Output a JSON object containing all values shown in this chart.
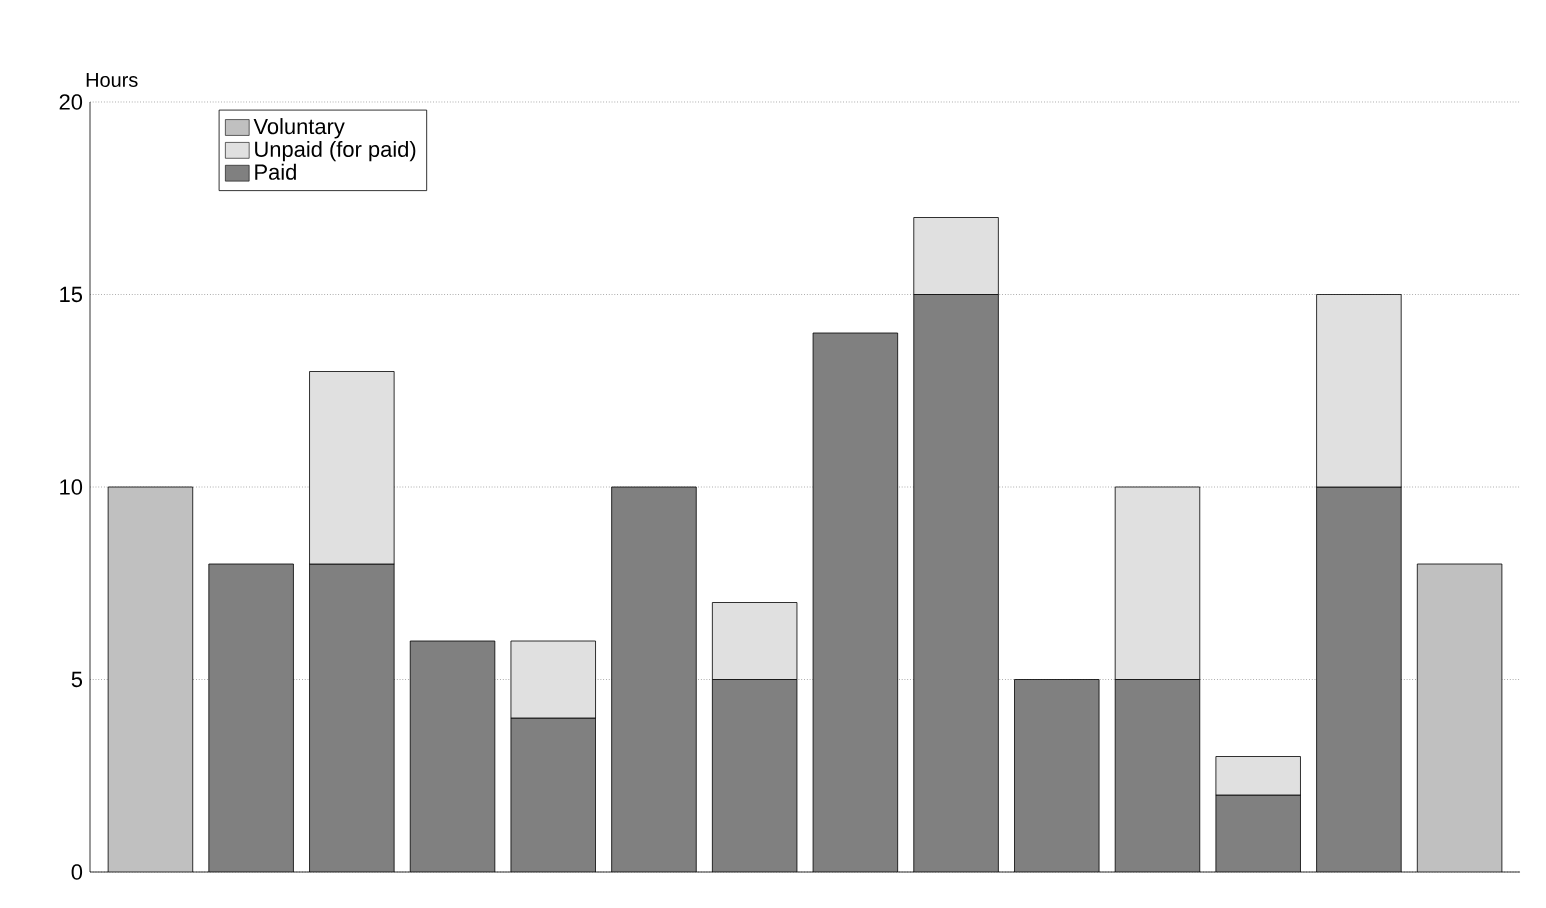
{
  "chart_data": {
    "type": "bar",
    "stacked": true,
    "ylabel": "Hours",
    "categories": [
      null,
      null,
      null,
      null,
      null,
      null,
      null,
      null,
      null,
      null,
      null,
      null,
      null,
      null
    ],
    "ylim": [
      0,
      20
    ],
    "yticks": [
      0,
      5,
      10,
      15,
      20
    ],
    "grid": "y",
    "legend": "top left",
    "series": [
      {
        "name": "Paid",
        "color": "#808080",
        "values": [
          null,
          8,
          8,
          6,
          4,
          10,
          5,
          14,
          15,
          5,
          5,
          2,
          10,
          null
        ]
      },
      {
        "name": "Unpaid (for paid)",
        "color": "#e0e0e0",
        "values": [
          null,
          null,
          5,
          null,
          2,
          null,
          2,
          null,
          2,
          null,
          5,
          1,
          5,
          null
        ]
      },
      {
        "name": "Voluntary",
        "color": "#c0c0c0",
        "values": [
          10,
          null,
          null,
          null,
          null,
          null,
          null,
          null,
          null,
          null,
          null,
          null,
          null,
          8
        ]
      }
    ]
  }
}
